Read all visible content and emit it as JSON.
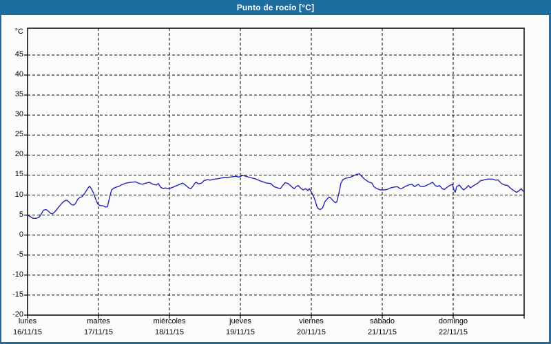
{
  "window": {
    "title": "Punto de rocío [°C]"
  },
  "colors": {
    "titlebar": "#1e6d9f",
    "window_border": "#1e6d9f",
    "background": "#fcfdfa",
    "axis": "#000000",
    "grid": "#000000",
    "line": "#2222bb",
    "text": "#000000",
    "title_text": "#ffffff"
  },
  "chart_data": {
    "type": "line",
    "title": "Punto de rocío [°C]",
    "ylabel": "°C",
    "y_unit_label": "°C",
    "ylim": [
      -20,
      45
    ],
    "y_ticks": [
      45,
      40,
      35,
      30,
      25,
      20,
      15,
      10,
      5,
      0,
      -5,
      -10,
      -15,
      -20
    ],
    "x_range_days": [
      0,
      7
    ],
    "x_days": [
      {
        "name": "lunes",
        "date": "16/11/15"
      },
      {
        "name": "martes",
        "date": "17/11/15"
      },
      {
        "name": "miércoles",
        "date": "18/11/15"
      },
      {
        "name": "jueves",
        "date": "19/11/15"
      },
      {
        "name": "viernes",
        "date": "20/11/15"
      },
      {
        "name": "sábado",
        "date": "21/11/15"
      },
      {
        "name": "domingo",
        "date": "22/11/15"
      }
    ],
    "grid": "dashed",
    "legend_position": "none",
    "series": [
      {
        "name": "Punto de rocío",
        "color": "#2222bb",
        "points": [
          [
            0.0,
            5.0
          ],
          [
            0.039,
            4.6
          ],
          [
            0.078,
            4.2
          ],
          [
            0.126,
            4.2
          ],
          [
            0.165,
            4.5
          ],
          [
            0.194,
            5.3
          ],
          [
            0.223,
            6.2
          ],
          [
            0.262,
            6.4
          ],
          [
            0.291,
            6.0
          ],
          [
            0.32,
            5.5
          ],
          [
            0.35,
            5.3
          ],
          [
            0.379,
            5.7
          ],
          [
            0.408,
            6.3
          ],
          [
            0.447,
            7.2
          ],
          [
            0.485,
            8.0
          ],
          [
            0.524,
            8.6
          ],
          [
            0.553,
            8.7
          ],
          [
            0.583,
            8.3
          ],
          [
            0.621,
            7.6
          ],
          [
            0.65,
            7.5
          ],
          [
            0.68,
            8.0
          ],
          [
            0.709,
            9.0
          ],
          [
            0.738,
            9.4
          ],
          [
            0.767,
            9.6
          ],
          [
            0.796,
            10.2
          ],
          [
            0.825,
            11.0
          ],
          [
            0.854,
            11.8
          ],
          [
            0.874,
            12.2
          ],
          [
            0.903,
            11.5
          ],
          [
            0.932,
            10.4
          ],
          [
            0.951,
            9.4
          ],
          [
            0.971,
            8.5
          ],
          [
            0.99,
            7.8
          ],
          [
            1.019,
            7.4
          ],
          [
            1.068,
            7.3
          ],
          [
            1.097,
            7.0
          ],
          [
            1.126,
            7.1
          ],
          [
            1.155,
            9.3
          ],
          [
            1.184,
            11.3
          ],
          [
            1.214,
            11.7
          ],
          [
            1.252,
            12.0
          ],
          [
            1.291,
            12.2
          ],
          [
            1.33,
            12.6
          ],
          [
            1.388,
            13.0
          ],
          [
            1.456,
            13.2
          ],
          [
            1.524,
            13.3
          ],
          [
            1.573,
            12.9
          ],
          [
            1.621,
            12.7
          ],
          [
            1.67,
            13.0
          ],
          [
            1.718,
            13.2
          ],
          [
            1.767,
            12.7
          ],
          [
            1.816,
            12.5
          ],
          [
            1.845,
            12.9
          ],
          [
            1.874,
            12.0
          ],
          [
            1.913,
            11.6
          ],
          [
            1.942,
            11.8
          ],
          [
            1.971,
            11.6
          ],
          [
            2.01,
            11.7
          ],
          [
            2.068,
            12.1
          ],
          [
            2.136,
            12.6
          ],
          [
            2.184,
            13.0
          ],
          [
            2.233,
            12.4
          ],
          [
            2.272,
            11.8
          ],
          [
            2.301,
            11.6
          ],
          [
            2.33,
            12.2
          ],
          [
            2.359,
            13.0
          ],
          [
            2.379,
            13.2
          ],
          [
            2.408,
            12.8
          ],
          [
            2.456,
            13.0
          ],
          [
            2.485,
            13.6
          ],
          [
            2.544,
            13.9
          ],
          [
            2.573,
            13.7
          ],
          [
            2.602,
            13.9
          ],
          [
            2.641,
            14.0
          ],
          [
            2.689,
            14.1
          ],
          [
            2.738,
            14.3
          ],
          [
            2.786,
            14.4
          ],
          [
            2.854,
            14.5
          ],
          [
            2.932,
            14.7
          ],
          [
            2.981,
            14.5
          ],
          [
            3.029,
            14.9
          ],
          [
            3.078,
            14.7
          ],
          [
            3.136,
            14.4
          ],
          [
            3.204,
            14.1
          ],
          [
            3.272,
            13.6
          ],
          [
            3.32,
            13.3
          ],
          [
            3.369,
            13.0
          ],
          [
            3.427,
            12.9
          ],
          [
            3.476,
            12.1
          ],
          [
            3.524,
            11.8
          ],
          [
            3.563,
            11.6
          ],
          [
            3.602,
            12.5
          ],
          [
            3.631,
            13.1
          ],
          [
            3.67,
            12.9
          ],
          [
            3.699,
            12.5
          ],
          [
            3.728,
            12.0
          ],
          [
            3.757,
            11.6
          ],
          [
            3.786,
            12.1
          ],
          [
            3.816,
            12.4
          ],
          [
            3.845,
            11.8
          ],
          [
            3.883,
            11.3
          ],
          [
            3.922,
            11.6
          ],
          [
            3.951,
            11.1
          ],
          [
            3.971,
            11.6
          ],
          [
            4.0,
            10.8
          ],
          [
            4.029,
            9.8
          ],
          [
            4.058,
            8.4
          ],
          [
            4.078,
            7.2
          ],
          [
            4.097,
            6.6
          ],
          [
            4.126,
            6.4
          ],
          [
            4.155,
            6.7
          ],
          [
            4.175,
            7.5
          ],
          [
            4.194,
            8.4
          ],
          [
            4.223,
            9.0
          ],
          [
            4.252,
            9.5
          ],
          [
            4.272,
            9.3
          ],
          [
            4.301,
            8.7
          ],
          [
            4.34,
            8.1
          ],
          [
            4.359,
            8.3
          ],
          [
            4.388,
            10.4
          ],
          [
            4.417,
            13.0
          ],
          [
            4.447,
            13.9
          ],
          [
            4.485,
            14.2
          ],
          [
            4.544,
            14.4
          ],
          [
            4.592,
            14.8
          ],
          [
            4.641,
            15.2
          ],
          [
            4.68,
            15.3
          ],
          [
            4.709,
            14.7
          ],
          [
            4.757,
            13.9
          ],
          [
            4.806,
            13.3
          ],
          [
            4.854,
            13.0
          ],
          [
            4.883,
            12.1
          ],
          [
            4.922,
            11.6
          ],
          [
            4.971,
            11.3
          ],
          [
            5.019,
            11.3
          ],
          [
            5.068,
            11.4
          ],
          [
            5.117,
            11.8
          ],
          [
            5.165,
            12.0
          ],
          [
            5.214,
            12.1
          ],
          [
            5.243,
            11.7
          ],
          [
            5.272,
            11.6
          ],
          [
            5.32,
            12.1
          ],
          [
            5.369,
            12.5
          ],
          [
            5.417,
            12.7
          ],
          [
            5.456,
            12.1
          ],
          [
            5.505,
            12.7
          ],
          [
            5.534,
            12.2
          ],
          [
            5.583,
            12.1
          ],
          [
            5.631,
            12.5
          ],
          [
            5.68,
            12.9
          ],
          [
            5.709,
            13.2
          ],
          [
            5.748,
            12.4
          ],
          [
            5.777,
            12.1
          ],
          [
            5.806,
            12.4
          ],
          [
            5.845,
            11.6
          ],
          [
            5.874,
            11.4
          ],
          [
            5.903,
            11.8
          ],
          [
            5.951,
            12.4
          ],
          [
            5.99,
            12.7
          ],
          [
            6.01,
            11.3
          ],
          [
            6.029,
            10.7
          ],
          [
            6.049,
            12.1
          ],
          [
            6.087,
            12.5
          ],
          [
            6.117,
            11.8
          ],
          [
            6.146,
            11.3
          ],
          [
            6.184,
            11.8
          ],
          [
            6.214,
            12.4
          ],
          [
            6.243,
            11.8
          ],
          [
            6.291,
            12.4
          ],
          [
            6.34,
            12.9
          ],
          [
            6.388,
            13.6
          ],
          [
            6.437,
            13.8
          ],
          [
            6.485,
            14.0
          ],
          [
            6.553,
            14.0
          ],
          [
            6.602,
            13.7
          ],
          [
            6.631,
            13.8
          ],
          [
            6.68,
            12.9
          ],
          [
            6.728,
            12.5
          ],
          [
            6.767,
            12.4
          ],
          [
            6.816,
            11.6
          ],
          [
            6.864,
            11.0
          ],
          [
            6.893,
            10.7
          ],
          [
            6.922,
            11.0
          ],
          [
            6.961,
            11.6
          ],
          [
            6.981,
            11.0
          ],
          [
            7.0,
            11.0
          ]
        ]
      }
    ]
  }
}
